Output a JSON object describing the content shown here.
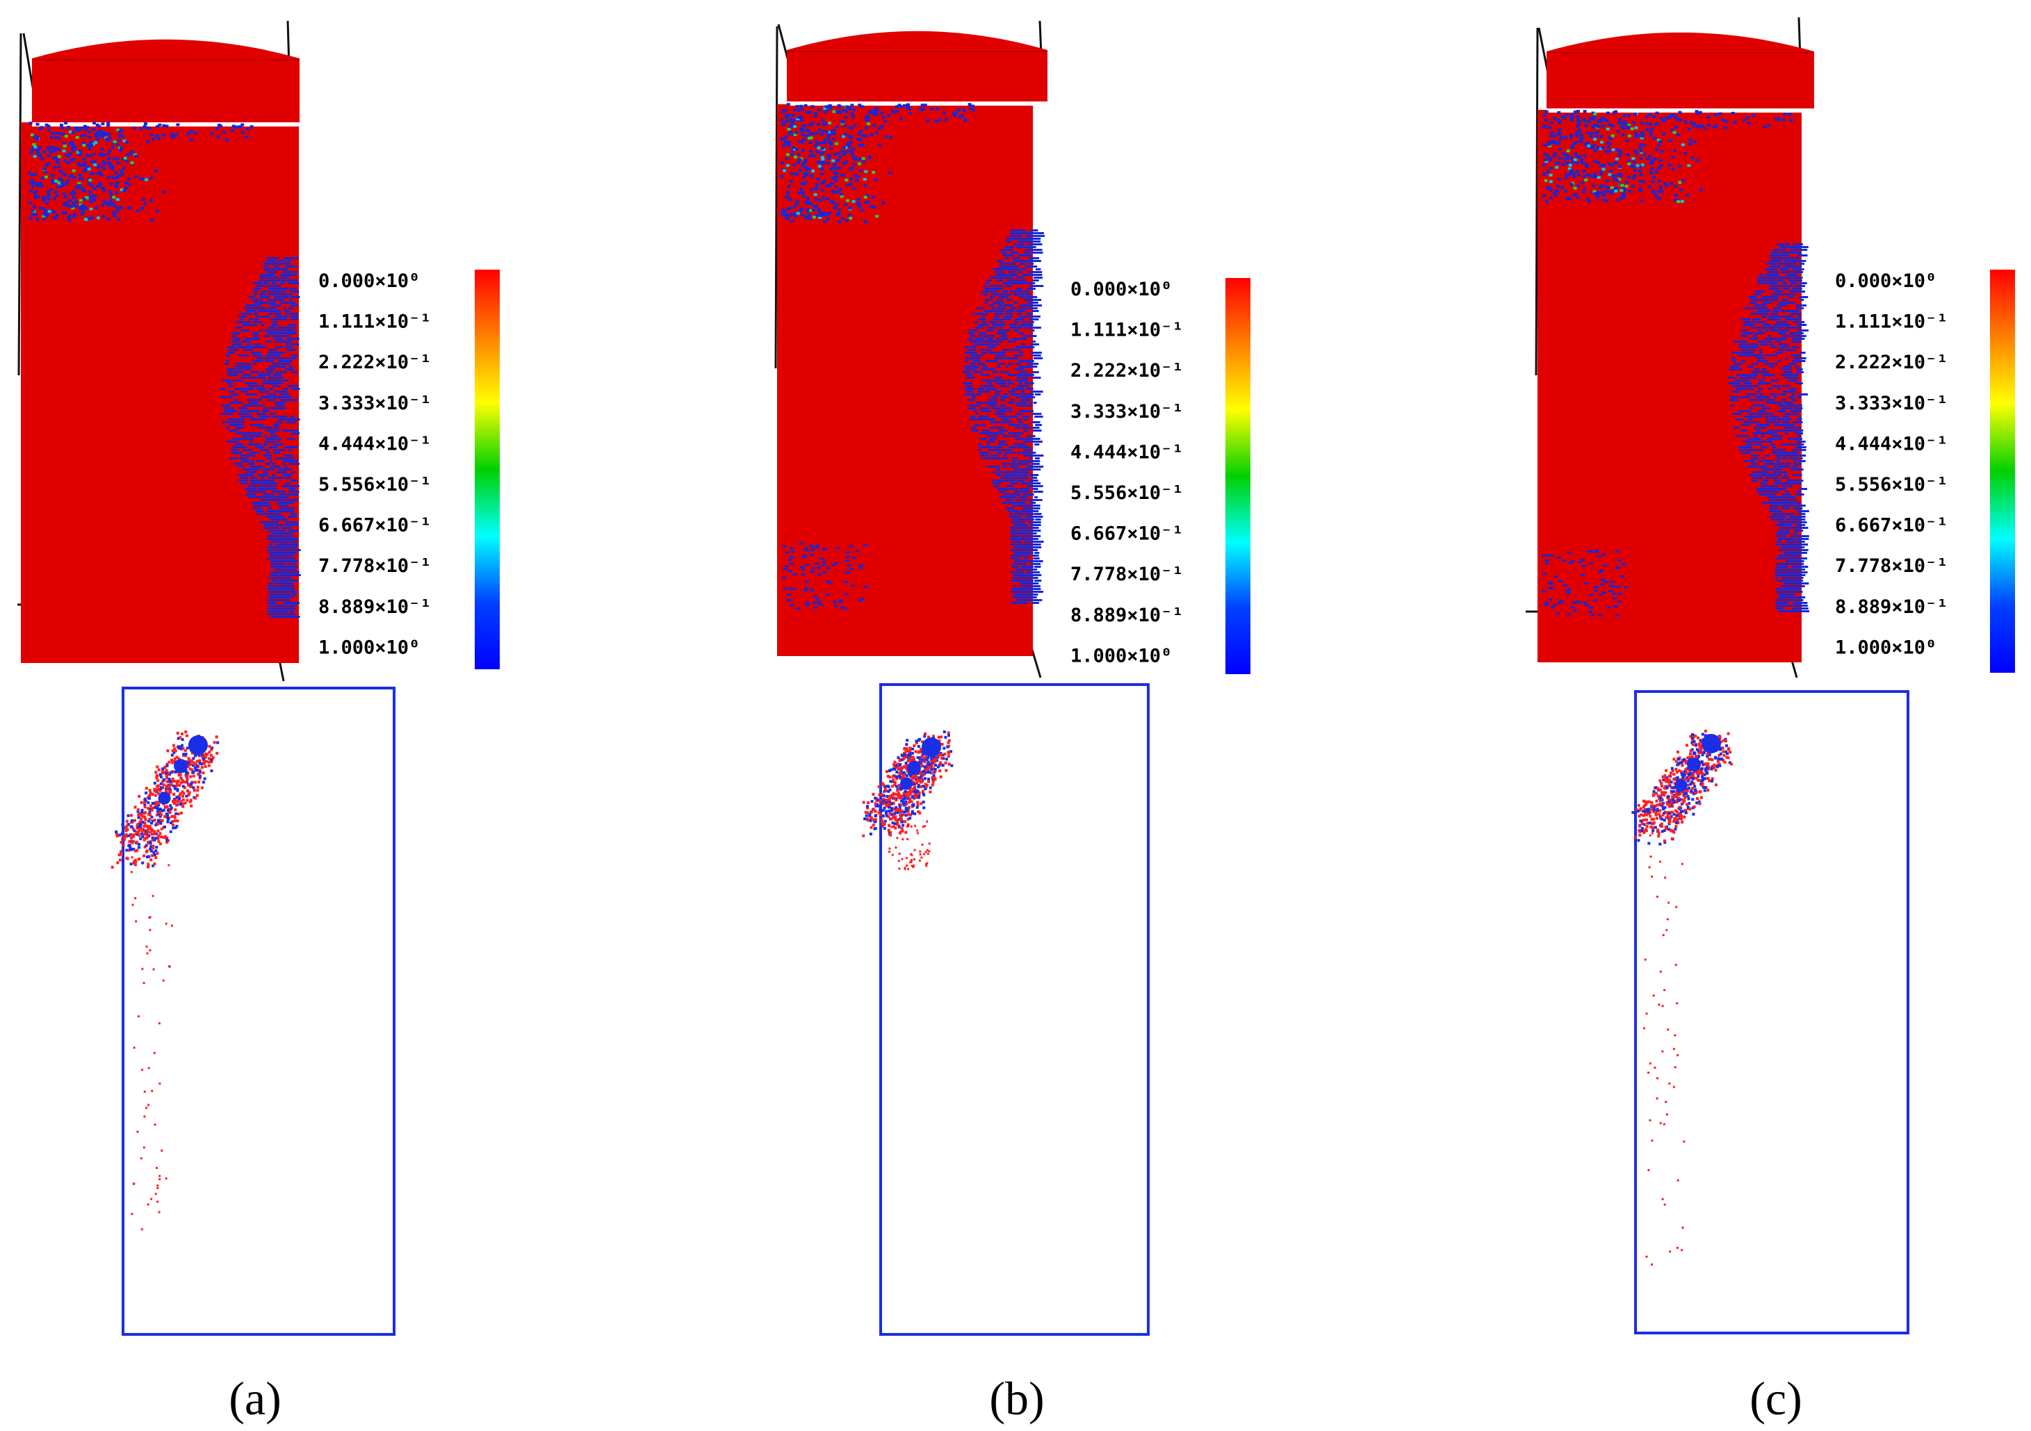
{
  "figure": {
    "colorbar": {
      "colors": [
        "#ff0000",
        "#ff8000",
        "#ffff00",
        "#00d000",
        "#00ffff",
        "#0040ff",
        "#0000ff"
      ],
      "labels": [
        "0.000×10⁰",
        "1.111×10⁻¹",
        "2.222×10⁻¹",
        "3.333×10⁻¹",
        "4.444×10⁻¹",
        "5.556×10⁻¹",
        "6.667×10⁻¹",
        "7.778×10⁻¹",
        "8.889×10⁻¹",
        "1.000×10⁰"
      ]
    },
    "material_color": "#e00000",
    "damage_color": "#1428d8",
    "crack_red": "#ff2020",
    "crack_blue": "#1a2ee6",
    "panels": [
      {
        "label": "(a)"
      },
      {
        "label": "(b)"
      },
      {
        "label": "(c)"
      }
    ]
  }
}
